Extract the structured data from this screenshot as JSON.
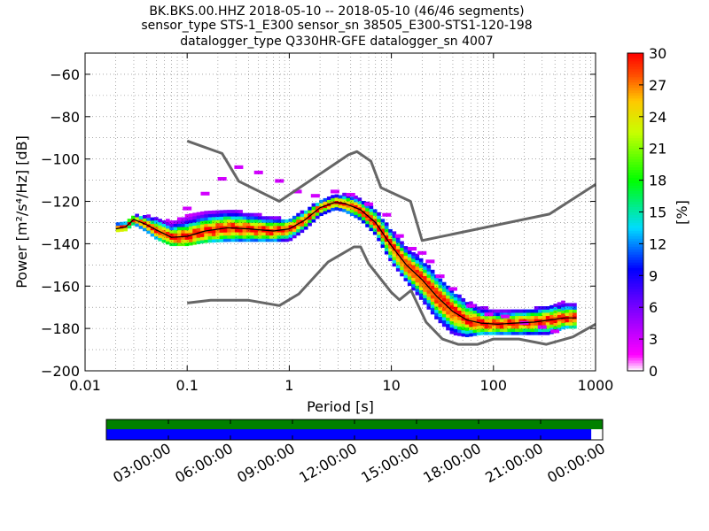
{
  "header": {
    "line1": "BK.BKS.00.HHZ   2018-05-10 -- 2018-05-10  (46/46 segments)",
    "line2": "sensor_type STS-1_E300 sensor_sn 38505_E300-STS1-120-198",
    "line3": "datalogger_type Q330HR-GFE datalogger_sn 4007"
  },
  "chart_data": [
    {
      "type": "heatmap",
      "title": "BK.BKS.00.HHZ   2018-05-10 -- 2018-05-10  (46/46 segments)",
      "xlabel": "Period [s]",
      "ylabel": "Power [m²/s⁴/Hz] [dB]",
      "xscale": "log",
      "xlim": [
        0.01,
        1000
      ],
      "ylim": [
        -200,
        -50
      ],
      "xticks": [
        "0.01",
        "0.1",
        "1",
        "10",
        "100",
        "1000"
      ],
      "yticks": [
        "−200",
        "−180",
        "−160",
        "−140",
        "−120",
        "−100",
        "−80",
        "−60"
      ],
      "colorbar": {
        "label": "[%]",
        "range": [
          0,
          30
        ],
        "ticks": [
          "0",
          "3",
          "6",
          "9",
          "12",
          "15",
          "18",
          "21",
          "24",
          "27",
          "30"
        ]
      },
      "grid": true,
      "series": [
        {
          "name": "",
          "role": "new high noise model",
          "color": "#666666",
          "points": [
            [
              0.1,
              -91.5
            ],
            [
              0.22,
              -97.4
            ],
            [
              0.32,
              -110.5
            ],
            [
              0.8,
              -120
            ],
            [
              3.8,
              -98
            ],
            [
              4.6,
              -96.5
            ],
            [
              6.3,
              -101
            ],
            [
              7.9,
              -113.5
            ],
            [
              15.4,
              -120
            ],
            [
              20,
              -138.5
            ],
            [
              354,
              -126
            ],
            [
              1000,
              -112
            ]
          ]
        },
        {
          "name": "",
          "role": "new low noise model",
          "color": "#666666",
          "points": [
            [
              0.1,
              -168
            ],
            [
              0.17,
              -166.7
            ],
            [
              0.4,
              -166.7
            ],
            [
              0.8,
              -169.2
            ],
            [
              1.24,
              -163.7
            ],
            [
              2.4,
              -148.6
            ],
            [
              4.3,
              -141.5
            ],
            [
              5.0,
              -141.5
            ],
            [
              6.0,
              -149.5
            ],
            [
              10,
              -163
            ],
            [
              12,
              -166.5
            ],
            [
              15.6,
              -162
            ],
            [
              21.9,
              -177
            ],
            [
              31.6,
              -185
            ],
            [
              45,
              -187.5
            ],
            [
              70,
              -187.5
            ],
            [
              100,
              -185
            ],
            [
              178,
              -185
            ],
            [
              330,
              -187.5
            ],
            [
              600,
              -184
            ],
            [
              1000,
              -178
            ]
          ]
        },
        {
          "name": "",
          "role": "mode of distribution",
          "color": "#000000",
          "points": [
            [
              0.02,
              -133
            ],
            [
              0.025,
              -132
            ],
            [
              0.03,
              -128.5
            ],
            [
              0.04,
              -131
            ],
            [
              0.05,
              -133.5
            ],
            [
              0.07,
              -137
            ],
            [
              0.1,
              -136.5
            ],
            [
              0.15,
              -134
            ],
            [
              0.25,
              -132.5
            ],
            [
              0.4,
              -133
            ],
            [
              0.7,
              -134
            ],
            [
              1.0,
              -133
            ],
            [
              1.4,
              -129
            ],
            [
              2.0,
              -123
            ],
            [
              2.8,
              -120.5
            ],
            [
              3.5,
              -121
            ],
            [
              5.0,
              -124
            ],
            [
              7.0,
              -130
            ],
            [
              10,
              -141
            ],
            [
              14,
              -150
            ],
            [
              20,
              -157
            ],
            [
              28,
              -165
            ],
            [
              40,
              -172
            ],
            [
              55,
              -176
            ],
            [
              75,
              -177.5
            ],
            [
              110,
              -178
            ],
            [
              160,
              -177.5
            ],
            [
              250,
              -177
            ],
            [
              350,
              -176
            ],
            [
              500,
              -175
            ],
            [
              650,
              -175
            ]
          ]
        }
      ],
      "density_bands": [
        {
          "periods": [
            0.02,
            0.025,
            0.03,
            0.04,
            0.05,
            0.07,
            0.1,
            0.15,
            0.25,
            0.4,
            0.7,
            1.0,
            1.4,
            2.0,
            2.8,
            3.5,
            5.0,
            7.0,
            10,
            14,
            20,
            28,
            40,
            55,
            75,
            110,
            160,
            250,
            350,
            500,
            650
          ],
          "upper_db": [
            -131,
            -130,
            -127,
            -127,
            -128,
            -130,
            -127,
            -125,
            -124.5,
            -126,
            -128,
            -129,
            -125,
            -120,
            -117.5,
            -117,
            -119,
            -124,
            -134,
            -142,
            -148,
            -155,
            -163,
            -168,
            -170,
            -172,
            -171.5,
            -171,
            -170,
            -168,
            -168
          ],
          "lower_db": [
            -134.5,
            -134,
            -131,
            -134.5,
            -138,
            -141,
            -141,
            -139.5,
            -139,
            -139,
            -139,
            -139,
            -134,
            -127,
            -124,
            -125,
            -129,
            -136,
            -149,
            -158,
            -167,
            -176,
            -183,
            -184,
            -183,
            -183,
            -183,
            -183,
            -183,
            -180,
            -180
          ]
        }
      ],
      "outliers": {
        "periods": [
          0.1,
          0.15,
          0.22,
          0.32,
          0.5,
          0.8,
          1.2,
          1.8,
          2.8,
          4.0,
          6.0,
          9.0,
          12,
          16,
          20,
          24,
          30,
          40,
          60,
          90,
          130,
          200,
          300,
          400
        ],
        "db": [
          -124,
          -117,
          -110,
          -104.5,
          -107,
          -111,
          -116,
          -118,
          -116,
          -117.5,
          -122,
          -127,
          -137,
          -143,
          -145,
          -149,
          -156,
          -162,
          -170,
          -174,
          -175,
          -178,
          -180,
          -182
        ]
      }
    },
    {
      "type": "timeline",
      "xticks": [
        "03:00:00",
        "06:00:00",
        "09:00:00",
        "12:00:00",
        "15:00:00",
        "18:00:00",
        "21:00:00",
        "00:00:00"
      ],
      "bars": [
        {
          "name": "data availability",
          "color": "#008000",
          "fraction": 1.0
        },
        {
          "name": "psd segments used",
          "color": "#0000ff",
          "fraction": 0.977
        }
      ]
    }
  ]
}
